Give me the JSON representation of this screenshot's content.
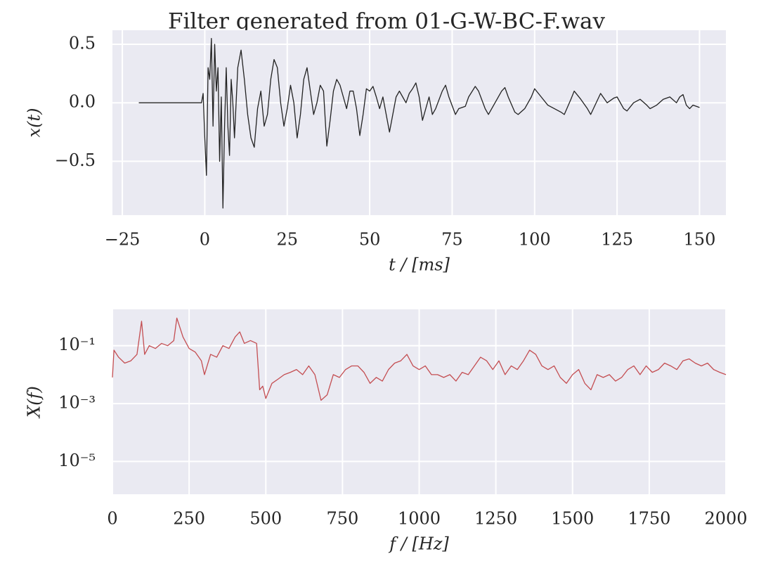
{
  "chart_data": [
    {
      "type": "line",
      "title": "Filter generated from 01-G-W-BC-F.wav",
      "x_label": "t / [ms]",
      "y_label": "x(t)",
      "xlim": [
        -28,
        158
      ],
      "ylim": [
        -0.96,
        0.62
      ],
      "xticks": [
        {
          "value": -25,
          "label": "−25"
        },
        0,
        25,
        50,
        75,
        100,
        125,
        150
      ],
      "yticks": [
        0.5,
        {
          "value": 0,
          "label": "0.0"
        },
        {
          "value": -0.5,
          "label": "−0.5"
        }
      ],
      "grid": true,
      "color": "#222222",
      "x": [
        -20,
        -1,
        -0.5,
        0,
        0.5,
        1,
        1.5,
        2,
        2.5,
        3,
        3.5,
        4,
        4.5,
        5,
        5.5,
        6,
        6.5,
        7,
        7.5,
        8,
        8.5,
        9,
        10,
        11,
        12,
        13,
        14,
        15,
        16,
        17,
        18,
        19,
        20,
        21,
        22,
        23,
        24,
        25,
        26,
        27,
        28,
        29,
        30,
        31,
        32,
        33,
        34,
        35,
        36,
        37,
        38,
        39,
        40,
        41,
        42,
        43,
        44,
        45,
        46,
        47,
        48,
        49,
        50,
        51,
        52,
        53,
        54,
        55,
        56,
        57,
        58,
        59,
        60,
        61,
        62,
        63,
        64,
        65,
        66,
        67,
        68,
        69,
        70,
        72,
        73,
        74,
        76,
        77,
        79,
        80,
        82,
        83,
        85,
        86,
        88,
        90,
        91,
        92,
        94,
        95,
        97,
        99,
        100,
        102,
        104,
        106,
        108,
        109,
        111,
        112,
        114,
        116,
        117,
        119,
        120,
        122,
        124,
        125,
        127,
        128,
        130,
        132,
        134,
        135,
        137,
        139,
        141,
        143,
        144,
        145,
        146,
        147,
        148,
        150
      ],
      "values": [
        0,
        0,
        0.08,
        -0.3,
        -0.62,
        0.3,
        0.2,
        0.55,
        -0.2,
        0.5,
        0.1,
        0.3,
        -0.5,
        0.05,
        -0.9,
        -0.2,
        0.3,
        -0.2,
        -0.45,
        0.2,
        0,
        -0.3,
        0.3,
        0.45,
        0.2,
        -0.1,
        -0.3,
        -0.38,
        -0.05,
        0.1,
        -0.2,
        -0.1,
        0.2,
        0.37,
        0.3,
        0,
        -0.2,
        -0.05,
        0.15,
        0,
        -0.3,
        -0.1,
        0.2,
        0.3,
        0.1,
        -0.1,
        0,
        0.15,
        0.1,
        -0.37,
        -0.15,
        0.1,
        0.2,
        0.15,
        0.05,
        -0.05,
        0.1,
        0.1,
        -0.05,
        -0.28,
        -0.1,
        0.12,
        0.1,
        0.14,
        0.05,
        -0.05,
        0.05,
        -0.1,
        -0.25,
        -0.1,
        0.05,
        0.1,
        0.05,
        0,
        0.08,
        0.12,
        0.17,
        0.05,
        -0.15,
        -0.05,
        0.05,
        -0.1,
        -0.05,
        0.1,
        0.15,
        0.05,
        -0.1,
        -0.05,
        -0.03,
        0.05,
        0.14,
        0.1,
        -0.05,
        -0.1,
        0,
        0.1,
        0.13,
        0.05,
        -0.08,
        -0.1,
        -0.05,
        0.05,
        0.12,
        0.05,
        -0.02,
        -0.05,
        -0.08,
        -0.1,
        0.03,
        0.1,
        0.03,
        -0.05,
        -0.1,
        0.02,
        0.08,
        0,
        0.04,
        0.05,
        -0.05,
        -0.07,
        0,
        0.03,
        -0.02,
        -0.05,
        -0.02,
        0.03,
        0.05,
        0,
        0.05,
        0.07,
        -0.02,
        -0.05,
        -0.02,
        -0.04
      ]
    },
    {
      "type": "line",
      "x_label": "f / [Hz]",
      "y_label": "X(f)",
      "yscale": "log",
      "xlim": [
        0,
        2000
      ],
      "ylim": [
        7.4e-07,
        1.8
      ],
      "xticks": [
        0,
        250,
        500,
        750,
        1000,
        1250,
        1500,
        1750,
        2000
      ],
      "yticks": [
        {
          "value": 0.1,
          "label": "10⁻¹"
        },
        {
          "value": 0.001,
          "label": "10⁻³"
        },
        {
          "value": 1e-05,
          "label": "10⁻⁵"
        }
      ],
      "grid": true,
      "color": "#c44e52",
      "x": [
        0,
        5,
        20,
        40,
        60,
        80,
        95,
        105,
        120,
        140,
        160,
        180,
        200,
        210,
        230,
        250,
        270,
        290,
        300,
        320,
        340,
        360,
        380,
        400,
        415,
        430,
        450,
        470,
        480,
        490,
        500,
        520,
        540,
        560,
        580,
        600,
        620,
        640,
        660,
        680,
        700,
        720,
        740,
        760,
        780,
        800,
        820,
        840,
        860,
        880,
        900,
        920,
        940,
        960,
        980,
        1000,
        1020,
        1040,
        1060,
        1080,
        1100,
        1120,
        1140,
        1160,
        1180,
        1200,
        1220,
        1240,
        1260,
        1280,
        1300,
        1320,
        1340,
        1360,
        1380,
        1400,
        1420,
        1440,
        1460,
        1480,
        1500,
        1520,
        1540,
        1560,
        1580,
        1600,
        1620,
        1640,
        1660,
        1680,
        1700,
        1720,
        1740,
        1760,
        1780,
        1800,
        1820,
        1840,
        1860,
        1880,
        1900,
        1920,
        1940,
        1960,
        1980,
        2000
      ],
      "values": [
        0.008,
        0.07,
        0.04,
        0.025,
        0.03,
        0.05,
        0.7,
        0.05,
        0.1,
        0.08,
        0.12,
        0.1,
        0.15,
        0.9,
        0.2,
        0.08,
        0.06,
        0.03,
        0.01,
        0.05,
        0.04,
        0.1,
        0.08,
        0.2,
        0.3,
        0.12,
        0.15,
        0.12,
        0.003,
        0.004,
        0.0015,
        0.005,
        0.007,
        0.01,
        0.012,
        0.015,
        0.01,
        0.02,
        0.01,
        0.0013,
        0.002,
        0.01,
        0.008,
        0.015,
        0.02,
        0.02,
        0.012,
        0.005,
        0.008,
        0.006,
        0.015,
        0.025,
        0.03,
        0.05,
        0.02,
        0.015,
        0.02,
        0.01,
        0.01,
        0.008,
        0.01,
        0.006,
        0.012,
        0.01,
        0.02,
        0.04,
        0.03,
        0.015,
        0.03,
        0.01,
        0.02,
        0.015,
        0.03,
        0.07,
        0.05,
        0.02,
        0.015,
        0.02,
        0.008,
        0.005,
        0.01,
        0.015,
        0.005,
        0.003,
        0.01,
        0.008,
        0.01,
        0.006,
        0.008,
        0.015,
        0.02,
        0.01,
        0.02,
        0.012,
        0.015,
        0.025,
        0.02,
        0.015,
        0.03,
        0.035,
        0.025,
        0.02,
        0.025,
        0.015,
        0.012,
        0.01
      ]
    }
  ]
}
